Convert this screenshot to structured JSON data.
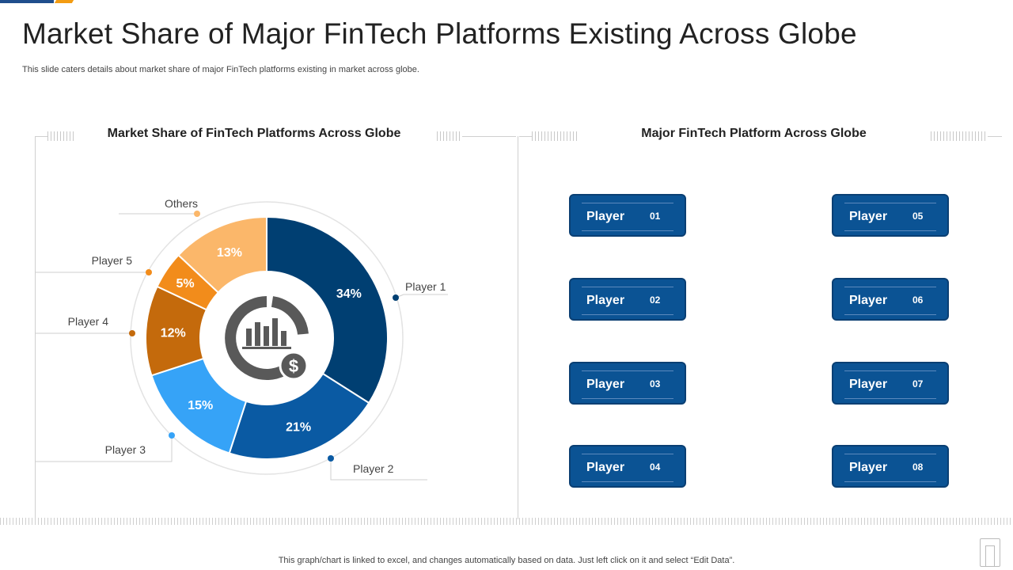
{
  "page": {
    "title": "Market Share of Major FinTech Platforms Existing Across Globe",
    "subtitle": "This slide caters details about market share of major FinTech platforms existing in market across globe.",
    "footnote": "This graph/chart is linked to excel,  and changes automatically based on data. Just left click on it and select “Edit Data”."
  },
  "colors": {
    "brand_blue": "#0b5394",
    "accent_orange": "#f39c12"
  },
  "left_panel": {
    "heading": "Market Share of FinTech Platforms Across Globe"
  },
  "right_panel": {
    "heading": "Major FinTech Platform Across Globe",
    "players": [
      {
        "label": "Player",
        "number": "01"
      },
      {
        "label": "Player",
        "number": "02"
      },
      {
        "label": "Player",
        "number": "03"
      },
      {
        "label": "Player",
        "number": "04"
      },
      {
        "label": "Player",
        "number": "05"
      },
      {
        "label": "Player",
        "number": "06"
      },
      {
        "label": "Player",
        "number": "07"
      },
      {
        "label": "Player",
        "number": "08"
      }
    ]
  },
  "chart_data": {
    "type": "pie",
    "title": "Market Share of FinTech Platforms Across Globe",
    "center_icon": "bar-chart-dollar-icon",
    "slices": [
      {
        "name": "Player 1",
        "value": 34,
        "label": "34%",
        "color": "#003f72"
      },
      {
        "name": "Player 2",
        "value": 21,
        "label": "21%",
        "color": "#0a5aa3"
      },
      {
        "name": "Player 3",
        "value": 15,
        "label": "15%",
        "color": "#36a3f7"
      },
      {
        "name": "Player 4",
        "value": 12,
        "label": "12%",
        "color": "#c46a0c"
      },
      {
        "name": "Player 5",
        "value": 5,
        "label": "5%",
        "color": "#f28c1b"
      },
      {
        "name": "Others",
        "value": 13,
        "label": "13%",
        "color": "#fbb76a"
      }
    ]
  }
}
